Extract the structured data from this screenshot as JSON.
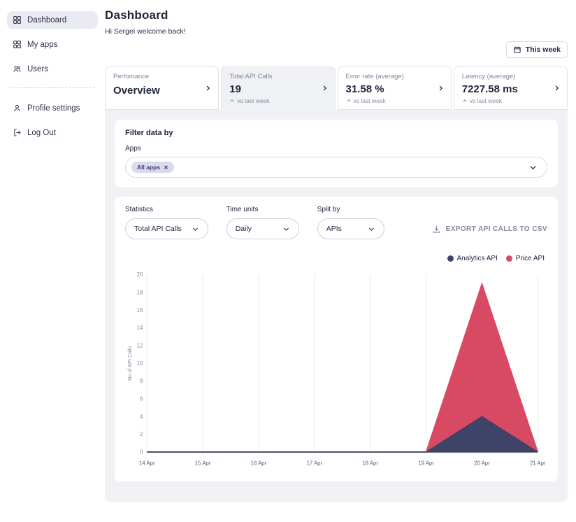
{
  "sidebar": {
    "items": [
      {
        "label": "Dashboard",
        "icon": "dashboard-grid-icon",
        "active": true
      },
      {
        "label": "My apps",
        "icon": "apps-grid-icon",
        "active": false
      },
      {
        "label": "Users",
        "icon": "users-icon",
        "active": false
      }
    ],
    "footer_items": [
      {
        "label": "Profile settings",
        "icon": "person-icon"
      },
      {
        "label": "Log Out",
        "icon": "logout-icon"
      }
    ]
  },
  "header": {
    "title": "Dashboard",
    "subtitle": "Hi Sergei welcome back!",
    "period_button": "This week"
  },
  "tabs": [
    {
      "label": "Perfomance",
      "value": "Overview",
      "sub": "",
      "selected": false
    },
    {
      "label": "Total API Calls",
      "value": "19",
      "sub": "vs last week",
      "selected": true
    },
    {
      "label": "Error rate (average)",
      "value": "31.58 %",
      "sub": "vs last week",
      "selected": false
    },
    {
      "label": "Latency (average)",
      "value": "7227.58 ms",
      "sub": "vs last week",
      "selected": false
    }
  ],
  "filter": {
    "title": "Filter data by",
    "apps_label": "Apps",
    "selected_app_pill": "All apps"
  },
  "controls": {
    "statistics_label": "Statistics",
    "statistics_value": "Total API Calls",
    "time_units_label": "Time units",
    "time_units_value": "Daily",
    "split_by_label": "Split by",
    "split_by_value": "APIs",
    "export_label": "EXPORT API CALLS TO CSV"
  },
  "chart_data": {
    "type": "area",
    "stacked": true,
    "x": [
      "14 Apr",
      "15 Apr",
      "16 Apr",
      "17 Apr",
      "18 Apr",
      "19 Apr",
      "20 Apr",
      "21 Apr"
    ],
    "series": [
      {
        "name": "Analytics API",
        "color": "#3e4367",
        "values": [
          0,
          0,
          0,
          0,
          0,
          0,
          4,
          0
        ]
      },
      {
        "name": "Price API",
        "color": "#d84a63",
        "values": [
          0,
          0,
          0,
          0,
          0,
          0,
          15,
          0
        ]
      }
    ],
    "ylabel": "No of API Calls",
    "ylim": [
      0,
      20
    ],
    "ytick_step": 2,
    "legend_position": "top-right",
    "grid": "vertical"
  },
  "colors": {
    "panel_bg": "#f0f1f5",
    "accent_navy": "#3e4367",
    "accent_red": "#d84a63",
    "pill_bg": "#d9daee"
  }
}
